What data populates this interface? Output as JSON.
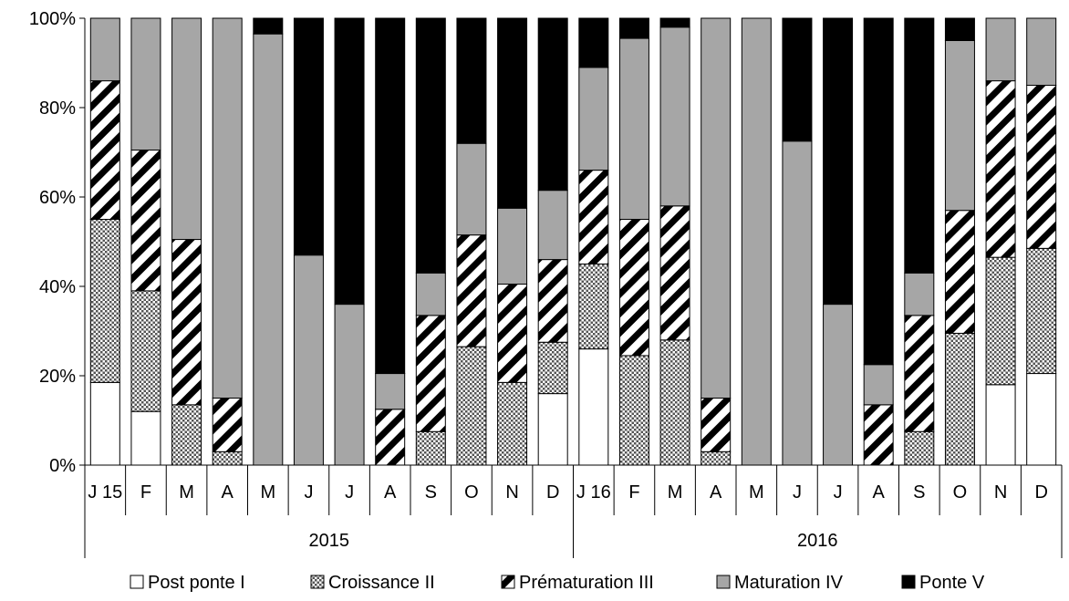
{
  "chart_data": {
    "type": "bar",
    "stacked": true,
    "normalized": true,
    "categories": [
      "J 15",
      "F",
      "M",
      "A",
      "M",
      "J",
      "J",
      "A",
      "S",
      "O",
      "N",
      "D",
      "J 16",
      "F",
      "M",
      "A",
      "M",
      "J",
      "J",
      "A",
      "S",
      "O",
      "N",
      "D"
    ],
    "groups": [
      {
        "label": "2015",
        "start": 0,
        "end": 11
      },
      {
        "label": "2016",
        "start": 12,
        "end": 23
      }
    ],
    "ylim": [
      0,
      100
    ],
    "yticks": [
      0,
      20,
      40,
      60,
      80,
      100
    ],
    "ytick_labels": [
      "0%",
      "20%",
      "40%",
      "60%",
      "80%",
      "100%"
    ],
    "legend_position": "bottom",
    "grid": false,
    "series": [
      {
        "name": "Post ponte I",
        "pattern": "white",
        "values": [
          18.5,
          12,
          0,
          0,
          0,
          0,
          0,
          0,
          0,
          0,
          0,
          16,
          26,
          0,
          0,
          0,
          0,
          0,
          0,
          0,
          0,
          0,
          18,
          20.5
        ]
      },
      {
        "name": "Croissance II",
        "pattern": "dotted",
        "values": [
          36.5,
          27,
          13.5,
          3,
          0,
          0,
          0,
          0,
          7.5,
          26.5,
          18.5,
          11.5,
          19,
          24.5,
          28,
          3,
          0,
          0,
          0,
          0,
          7.5,
          29.5,
          28.5,
          28
        ]
      },
      {
        "name": "Prématuration III",
        "pattern": "diagonal",
        "values": [
          31,
          31.5,
          37,
          12,
          0,
          0,
          0,
          12.5,
          26,
          25,
          22,
          18.5,
          21,
          30.5,
          30,
          12,
          0,
          0,
          0,
          13.5,
          26,
          27.5,
          39.5,
          36.5
        ]
      },
      {
        "name": "Maturation IV",
        "pattern": "gray",
        "values": [
          14,
          29.5,
          49.5,
          85,
          96.5,
          47,
          36,
          8,
          9.5,
          20.5,
          17,
          15.5,
          23,
          40.5,
          40,
          85,
          100,
          72.5,
          36,
          9,
          9.5,
          38,
          14,
          15
        ]
      },
      {
        "name": "Ponte V",
        "pattern": "black",
        "values": [
          0,
          0,
          0,
          0,
          3.5,
          53,
          64,
          79.5,
          57,
          28,
          42.5,
          38.5,
          11,
          4.5,
          2,
          0,
          0,
          27.5,
          64,
          77.5,
          57,
          5,
          0,
          0
        ]
      }
    ]
  }
}
